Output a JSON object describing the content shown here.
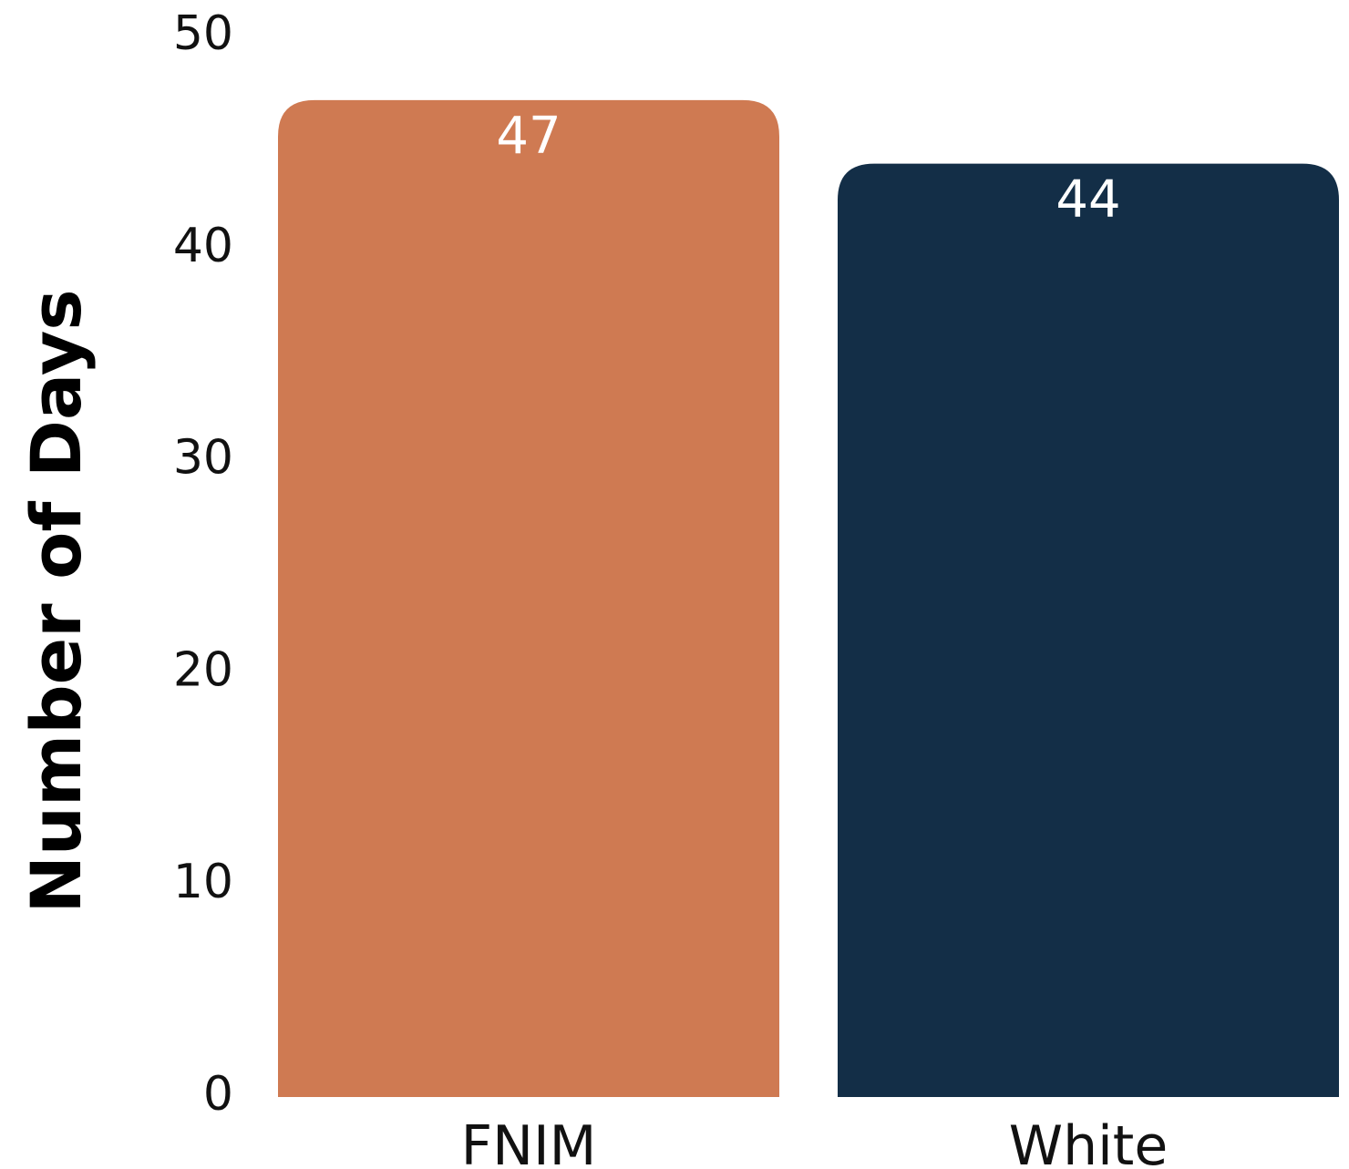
{
  "chart_data": {
    "type": "bar",
    "categories": [
      "FNIM",
      "White"
    ],
    "values": [
      47,
      44
    ],
    "data_labels": [
      "47",
      "44"
    ],
    "ylabel": "Number of Days",
    "xlabel": "",
    "ylim": [
      0,
      50
    ],
    "yticks": [
      "0",
      "10",
      "20",
      "30",
      "40",
      "50"
    ],
    "bar_colors": [
      "#cf7a52",
      "#132e47"
    ],
    "grid": false,
    "legend": "none"
  }
}
